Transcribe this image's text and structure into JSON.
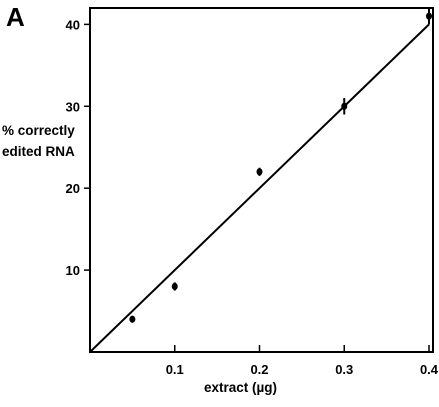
{
  "panel_letter": "A",
  "chart_data": {
    "type": "scatter",
    "title": "",
    "xlabel": "extract (µg)",
    "ylabel": "% correctly edited RNA",
    "xlim": [
      0,
      0.4
    ],
    "ylim": [
      0,
      42
    ],
    "x_ticks": [
      {
        "value": 0.1,
        "label": "0.1"
      },
      {
        "value": 0.2,
        "label": "0.2"
      },
      {
        "value": 0.3,
        "label": "0.3"
      },
      {
        "value": 0.4,
        "label": "0.4"
      }
    ],
    "y_ticks": [
      {
        "value": 10,
        "label": "10"
      },
      {
        "value": 20,
        "label": "20"
      },
      {
        "value": 30,
        "label": "30"
      },
      {
        "value": 40,
        "label": "40"
      }
    ],
    "points": [
      {
        "x": 0.05,
        "y": 4,
        "err": 0.3
      },
      {
        "x": 0.1,
        "y": 8,
        "err": 0.5
      },
      {
        "x": 0.2,
        "y": 22,
        "err": 0.5
      },
      {
        "x": 0.3,
        "y": 30,
        "err": 1.0
      },
      {
        "x": 0.4,
        "y": 41,
        "err": 1.0
      }
    ],
    "fit_line": {
      "x0": 0,
      "y0": 0,
      "x1": 0.4,
      "y1": 40
    },
    "grid": false,
    "legend": "none"
  }
}
